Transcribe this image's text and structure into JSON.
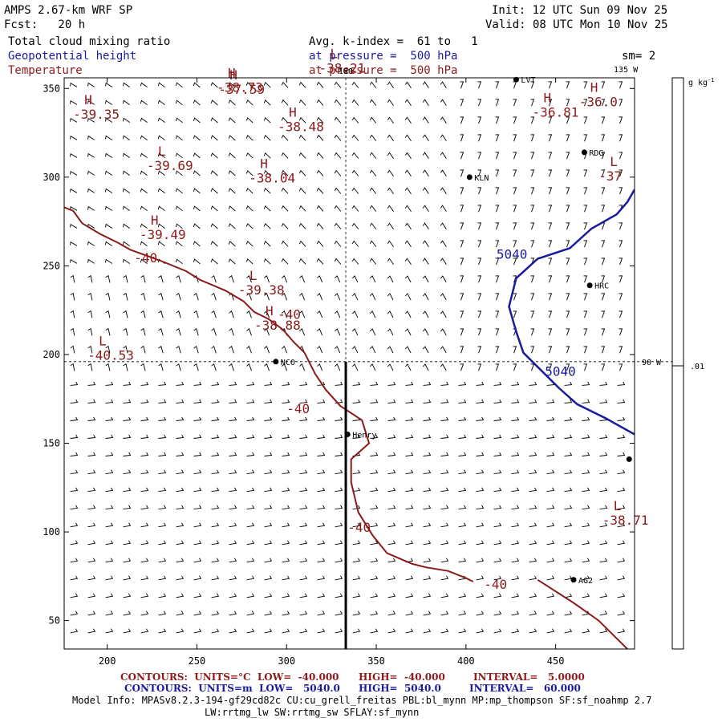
{
  "header": {
    "model": "AMPS 2.67-km WRF SP",
    "fcst": "Fcst:   20 h",
    "init": "Init: 12 UTC Sun 09 Nov 25",
    "valid": "Valid: 08 UTC Mon 10 Nov 25",
    "field1": "Total cloud mixing ratio",
    "field2": "Geopotential height",
    "field3": "Temperature",
    "avg": "Avg. k-index =  61 to   1",
    "pressure1": "at pressure =  500 hPa",
    "pressure2": "at pressure =  500 hPa",
    "sm": "sm= 2"
  },
  "colors": {
    "temperature": "#8b1a1a",
    "height": "#1a1a9c",
    "cross_section": "#000000"
  },
  "axes": {
    "x_ticks": [
      200,
      250,
      300,
      350,
      400,
      450
    ],
    "y_ticks": [
      50,
      100,
      150,
      200,
      250,
      300,
      350
    ],
    "x_range": [
      176,
      494
    ],
    "y_range": [
      34,
      356
    ],
    "grid_lines": [
      {
        "axis": "x",
        "value": 333
      },
      {
        "axis": "y",
        "value": 196
      }
    ]
  },
  "meridian_labels": {
    "top": "180",
    "top_right": "135 W",
    "right": "90 W"
  },
  "colorbar": {
    "unit": "g kg",
    "unit_sup": "-1",
    "tick": ".01"
  },
  "stations": [
    {
      "name": "KLN",
      "x": 402,
      "y": 300
    },
    {
      "name": "RDG",
      "x": 466,
      "y": 314
    },
    {
      "name": "HRC",
      "x": 469,
      "y": 239
    },
    {
      "name": "NCO",
      "x": 294,
      "y": 196
    },
    {
      "name": "Henry",
      "x": 334,
      "y": 155
    },
    {
      "name": "AG2",
      "x": 460,
      "y": 73
    },
    {
      "name": "LVT",
      "x": 428,
      "y": 355
    },
    {
      "name": "",
      "x": 491,
      "y": 141
    }
  ],
  "extrema": [
    {
      "kind": "L",
      "value": "-38.21",
      "x": 318,
      "y": 359
    },
    {
      "kind": "H",
      "value": "-37.59",
      "x": 262,
      "y": 347
    },
    {
      "kind": "H",
      "value": "-38.73",
      "x": 261,
      "y": 348
    },
    {
      "kind": "H",
      "value": "-36.81",
      "x": 437,
      "y": 334
    },
    {
      "kind": "H",
      "value": "-36.0",
      "x": 463,
      "y": 340
    },
    {
      "kind": "H",
      "value": "-39.35",
      "x": 181,
      "y": 333
    },
    {
      "kind": "H",
      "value": "-38.48",
      "x": 295,
      "y": 326
    },
    {
      "kind": "L",
      "value": "-39.69",
      "x": 222,
      "y": 304
    },
    {
      "kind": "H",
      "value": "-38.04",
      "x": 279,
      "y": 297
    },
    {
      "kind": "L",
      "value": "-37",
      "x": 474,
      "y": 298
    },
    {
      "kind": "H",
      "value": "-39.49",
      "x": 218,
      "y": 265
    },
    {
      "kind": "L",
      "value": "-39.38",
      "x": 273,
      "y": 234
    },
    {
      "kind": "H",
      "value": "-38.88",
      "x": 282,
      "y": 214
    },
    {
      "kind": "L",
      "value": "-40.53",
      "x": 189,
      "y": 197
    },
    {
      "kind": "L",
      "value": "-38.71",
      "x": 476,
      "y": 104
    }
  ],
  "temperature_contours": {
    "label": "-40",
    "label_positions": [
      {
        "x": 215,
        "y": 252
      },
      {
        "x": 295,
        "y": 220
      },
      {
        "x": 300,
        "y": 167
      },
      {
        "x": 334,
        "y": 100
      },
      {
        "x": 410,
        "y": 68
      }
    ],
    "lines": [
      [
        [
          176,
          283
        ],
        [
          181,
          281
        ],
        [
          186,
          274
        ],
        [
          196,
          268
        ],
        [
          206,
          263
        ],
        [
          213,
          259
        ],
        [
          224,
          255
        ],
        [
          232,
          252
        ],
        [
          244,
          247
        ],
        [
          252,
          242
        ],
        [
          266,
          236
        ],
        [
          276,
          230
        ],
        [
          282,
          224
        ],
        [
          290,
          220
        ],
        [
          298,
          214
        ],
        [
          304,
          207
        ],
        [
          310,
          201
        ],
        [
          316,
          189
        ],
        [
          322,
          180
        ],
        [
          330,
          171
        ],
        [
          342,
          163
        ],
        [
          346,
          150
        ],
        [
          336,
          141
        ],
        [
          336,
          128
        ],
        [
          340,
          111
        ],
        [
          348,
          98
        ],
        [
          356,
          88
        ],
        [
          370,
          82
        ],
        [
          378,
          80
        ],
        [
          390,
          78
        ],
        [
          400,
          74
        ],
        [
          404,
          72
        ]
      ],
      [
        [
          440,
          73
        ],
        [
          460,
          60
        ],
        [
          474,
          50
        ],
        [
          484,
          40
        ],
        [
          490,
          34
        ]
      ]
    ]
  },
  "height_contours": {
    "label": "5040",
    "label_positions": [
      {
        "x": 417,
        "y": 254
      },
      {
        "x": 444,
        "y": 188
      }
    ],
    "line": [
      [
        494,
        293
      ],
      [
        490,
        286
      ],
      [
        484,
        279
      ],
      [
        470,
        271
      ],
      [
        458,
        260
      ],
      [
        440,
        254
      ],
      [
        428,
        243
      ],
      [
        424,
        227
      ],
      [
        428,
        213
      ],
      [
        432,
        201
      ],
      [
        442,
        191
      ],
      [
        452,
        181
      ],
      [
        462,
        172
      ],
      [
        478,
        164
      ],
      [
        494,
        155
      ]
    ]
  },
  "cross_section": {
    "x": 333,
    "y_start": 34,
    "y_end": 196
  },
  "footer": {
    "line1_a": "CONTOURS:  UNITS=°C  LOW=  -40.000",
    "line1_b": "HIGH=  -40.000",
    "line1_c": "INTERVAL=   5.0000",
    "line2_a": "CONTOURS:  UNITS=m  LOW=   5040.0",
    "line2_b": "HIGH=  5040.0",
    "line2_c": "INTERVAL=   60.000",
    "model_info": "Model Info: MPASv8.2.3-194-gf29cd82c CU:cu_grell_freitas PBL:bl_mynn MP:mp_thompson SF:sf_noahmp 2.7",
    "model_info2": "LW:rrtmg_lw SW:rrtmg_sw SFLAY:sf_mynn"
  }
}
